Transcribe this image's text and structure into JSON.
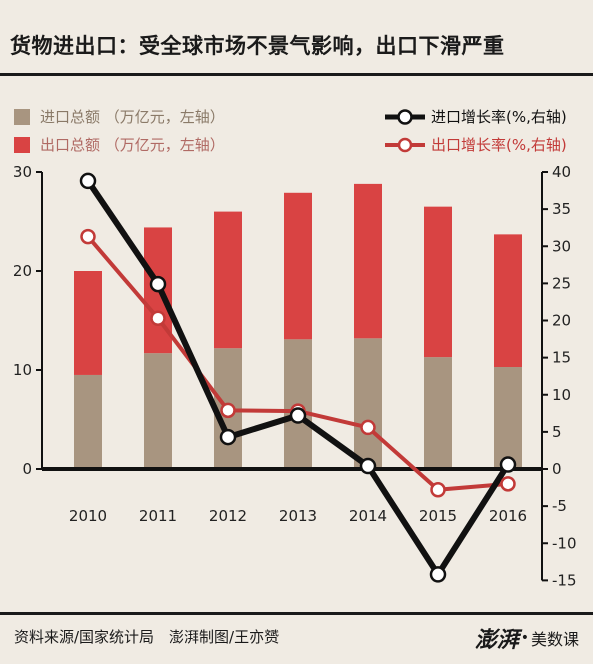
{
  "title": "货物进出口：受全球市场不景气影响，出口下滑严重",
  "legend": {
    "import_total": "进口总额 （万亿元，左轴）",
    "export_total": "出口总额 （万亿元，左轴）",
    "import_growth": "进口增长率(%,右轴)",
    "export_growth": "出口增长率(%,右轴)"
  },
  "footer": {
    "source": "资料来源/国家统计局　澎湃制图/王亦赟",
    "brand_main": "澎湃",
    "brand_dot": "•",
    "brand_sub": "美数课"
  },
  "colors": {
    "background": "#f0ebe3",
    "import_bar": "#a89580",
    "export_bar": "#d94343",
    "import_line": "#111111",
    "export_line": "#c23a38"
  },
  "chart_data": {
    "type": "bar+line",
    "categories": [
      "2010",
      "2011",
      "2012",
      "2013",
      "2014",
      "2015",
      "2016"
    ],
    "stacked_bars": [
      {
        "name": "进口总额",
        "values": [
          9.5,
          11.7,
          12.2,
          13.1,
          13.2,
          11.3,
          10.3
        ]
      },
      {
        "name": "出口总额",
        "values": [
          10.5,
          12.7,
          13.8,
          14.8,
          15.6,
          15.2,
          13.4
        ]
      }
    ],
    "lines": [
      {
        "name": "进口增长率",
        "values": [
          38.8,
          24.9,
          4.3,
          7.2,
          0.4,
          -14.2,
          0.6
        ]
      },
      {
        "name": "出口增长率",
        "values": [
          31.3,
          20.3,
          7.9,
          7.8,
          5.6,
          -2.8,
          -2.0
        ]
      }
    ],
    "left_axis": {
      "ticks": [
        "0",
        "10",
        "20",
        "30"
      ],
      "ylim": [
        0,
        30
      ]
    },
    "right_axis": {
      "ticks": [
        "-15",
        "-10",
        "-5",
        "0",
        "5",
        "10",
        "15",
        "20",
        "25",
        "30",
        "35",
        "40"
      ],
      "ylim": [
        -15,
        40
      ]
    },
    "grid": false,
    "legend_position": "top"
  }
}
